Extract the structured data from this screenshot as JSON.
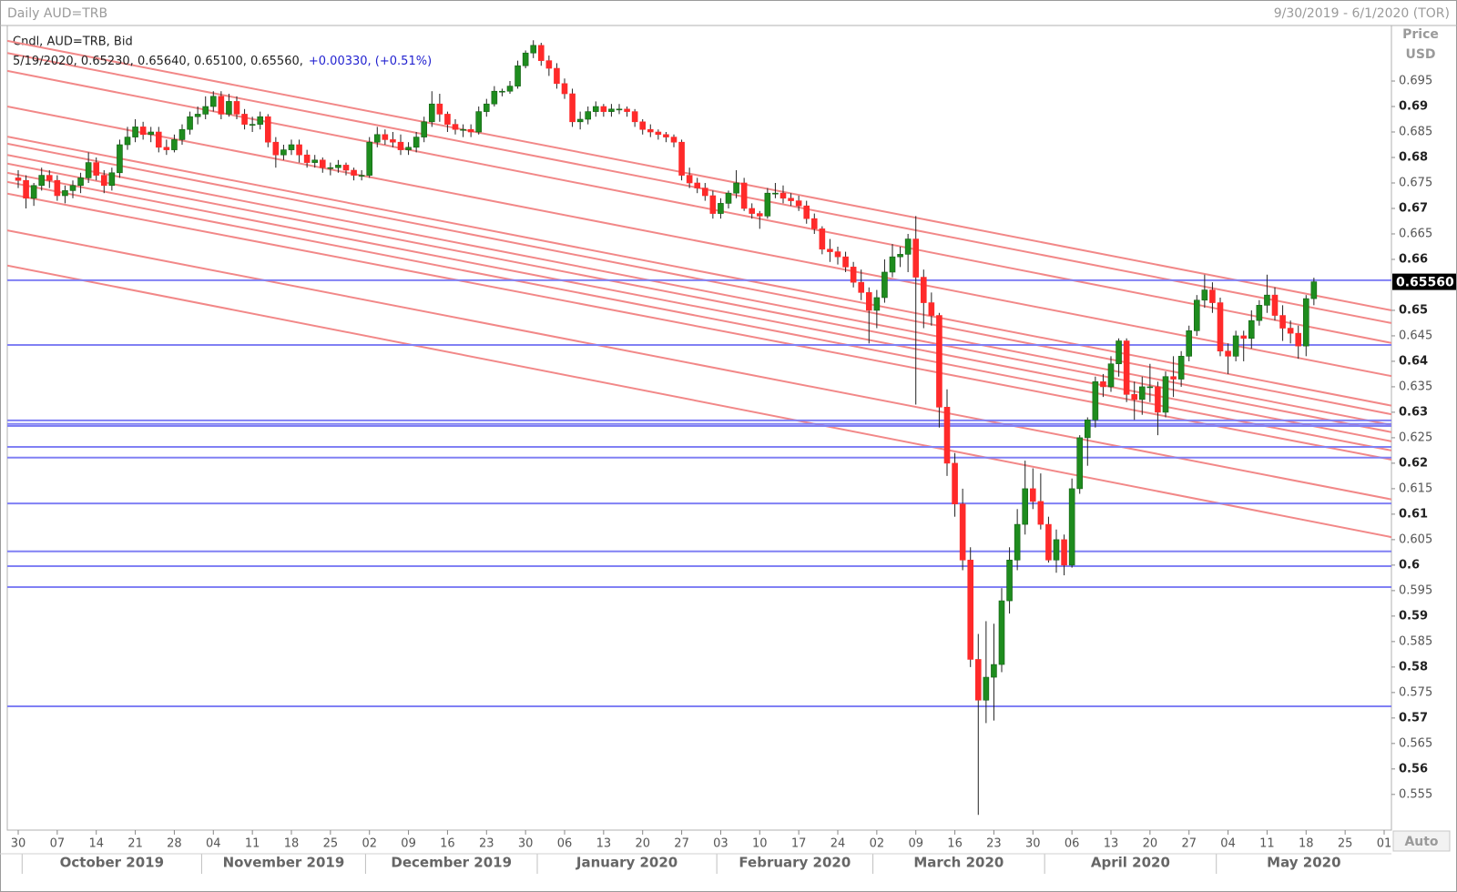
{
  "chart_data": {
    "type": "candlestick",
    "title": "Daily AUD=TRB",
    "date_range": "9/30/2019 - 6/1/2020 (TOR)",
    "legend_title": "Cndl, AUD=TRB, Bid",
    "legend_ohlc_text": "5/19/2020, 0.65230, 0.65640, 0.65100, 0.65560,",
    "legend_change_text": "+0.00330, (+0.51%)",
    "y_axis_title": "Price",
    "y_axis_unit": "USD",
    "scale_mode": "Auto",
    "up_color": "#1e8c1e",
    "down_color": "#ff2a2a",
    "hline_color": "#8080f4",
    "trendline_color": "#f28888",
    "ylim": [
      0.548,
      0.7059
    ],
    "yticks": [
      0.555,
      0.56,
      0.565,
      0.57,
      0.575,
      0.58,
      0.585,
      0.59,
      0.595,
      0.6,
      0.605,
      0.61,
      0.615,
      0.62,
      0.625,
      0.63,
      0.635,
      0.64,
      0.645,
      0.65,
      0.66,
      0.665,
      0.67,
      0.675,
      0.68,
      0.685,
      0.69,
      0.695
    ],
    "last_price": {
      "value": 0.6556,
      "label": "0.65560"
    },
    "xticks": [
      "30",
      "07",
      "14",
      "21",
      "28",
      "04",
      "11",
      "18",
      "25",
      "02",
      "09",
      "16",
      "23",
      "30",
      "06",
      "13",
      "20",
      "27",
      "03",
      "10",
      "17",
      "24",
      "02",
      "09",
      "16",
      "23",
      "30",
      "06",
      "13",
      "20",
      "27",
      "04",
      "11",
      "18",
      "25",
      "01"
    ],
    "month_labels": [
      "October 2019",
      "November 2019",
      "December 2019",
      "January 2020",
      "February 2020",
      "March 2020",
      "April 2020",
      "May 2020"
    ],
    "horizontal_lines": [
      0.6559,
      0.6432,
      0.6284,
      0.6277,
      0.6273,
      0.6232,
      0.6211,
      0.6121,
      0.6027,
      0.5998,
      0.5957,
      0.5723
    ],
    "trendlines": [
      [
        0.7029,
        0.65
      ],
      [
        0.7005,
        0.6475
      ],
      [
        0.697,
        0.6436
      ],
      [
        0.69,
        0.6371
      ],
      [
        0.6841,
        0.6313
      ],
      [
        0.6827,
        0.6296
      ],
      [
        0.6805,
        0.6275
      ],
      [
        0.6788,
        0.6261
      ],
      [
        0.677,
        0.6243
      ],
      [
        0.6752,
        0.6225
      ],
      [
        0.6729,
        0.6207
      ],
      [
        0.6657,
        0.6129
      ],
      [
        0.6588,
        0.6055
      ]
    ],
    "x": [
      "2019-09-30",
      "2019-10-01",
      "2019-10-02",
      "2019-10-03",
      "2019-10-04",
      "2019-10-07",
      "2019-10-08",
      "2019-10-09",
      "2019-10-10",
      "2019-10-11",
      "2019-10-14",
      "2019-10-15",
      "2019-10-16",
      "2019-10-17",
      "2019-10-18",
      "2019-10-21",
      "2019-10-22",
      "2019-10-23",
      "2019-10-24",
      "2019-10-25",
      "2019-10-28",
      "2019-10-29",
      "2019-10-30",
      "2019-10-31",
      "2019-11-01",
      "2019-11-04",
      "2019-11-05",
      "2019-11-06",
      "2019-11-07",
      "2019-11-08",
      "2019-11-11",
      "2019-11-12",
      "2019-11-13",
      "2019-11-14",
      "2019-11-15",
      "2019-11-18",
      "2019-11-19",
      "2019-11-20",
      "2019-11-21",
      "2019-11-22",
      "2019-11-25",
      "2019-11-26",
      "2019-11-27",
      "2019-11-28",
      "2019-11-29",
      "2019-12-02",
      "2019-12-03",
      "2019-12-04",
      "2019-12-05",
      "2019-12-06",
      "2019-12-09",
      "2019-12-10",
      "2019-12-11",
      "2019-12-12",
      "2019-12-13",
      "2019-12-16",
      "2019-12-17",
      "2019-12-18",
      "2019-12-19",
      "2019-12-20",
      "2019-12-23",
      "2019-12-24",
      "2019-12-25",
      "2019-12-26",
      "2019-12-27",
      "2019-12-30",
      "2019-12-31",
      "2020-01-01",
      "2020-01-02",
      "2020-01-03",
      "2020-01-06",
      "2020-01-07",
      "2020-01-08",
      "2020-01-09",
      "2020-01-10",
      "2020-01-13",
      "2020-01-14",
      "2020-01-15",
      "2020-01-16",
      "2020-01-17",
      "2020-01-20",
      "2020-01-21",
      "2020-01-22",
      "2020-01-23",
      "2020-01-24",
      "2020-01-27",
      "2020-01-28",
      "2020-01-29",
      "2020-01-30",
      "2020-01-31",
      "2020-02-03",
      "2020-02-04",
      "2020-02-05",
      "2020-02-06",
      "2020-02-07",
      "2020-02-10",
      "2020-02-11",
      "2020-02-12",
      "2020-02-13",
      "2020-02-14",
      "2020-02-17",
      "2020-02-18",
      "2020-02-19",
      "2020-02-20",
      "2020-02-21",
      "2020-02-24",
      "2020-02-25",
      "2020-02-26",
      "2020-02-27",
      "2020-02-28",
      "2020-03-02",
      "2020-03-03",
      "2020-03-04",
      "2020-03-05",
      "2020-03-06",
      "2020-03-09",
      "2020-03-10",
      "2020-03-11",
      "2020-03-12",
      "2020-03-13",
      "2020-03-16",
      "2020-03-17",
      "2020-03-18",
      "2020-03-19",
      "2020-03-20",
      "2020-03-23",
      "2020-03-24",
      "2020-03-25",
      "2020-03-26",
      "2020-03-27",
      "2020-03-30",
      "2020-03-31",
      "2020-04-01",
      "2020-04-02",
      "2020-04-03",
      "2020-04-06",
      "2020-04-07",
      "2020-04-08",
      "2020-04-09",
      "2020-04-10",
      "2020-04-13",
      "2020-04-14",
      "2020-04-15",
      "2020-04-16",
      "2020-04-17",
      "2020-04-20",
      "2020-04-21",
      "2020-04-22",
      "2020-04-23",
      "2020-04-24",
      "2020-04-27",
      "2020-04-28",
      "2020-04-29",
      "2020-04-30",
      "2020-05-01",
      "2020-05-04",
      "2020-05-05",
      "2020-05-06",
      "2020-05-07",
      "2020-05-08",
      "2020-05-11",
      "2020-05-12",
      "2020-05-13",
      "2020-05-14",
      "2020-05-15",
      "2020-05-18",
      "2020-05-19"
    ],
    "ohlc": [
      [
        0.676,
        0.6775,
        0.674,
        0.6755
      ],
      [
        0.6755,
        0.6765,
        0.67,
        0.672
      ],
      [
        0.672,
        0.675,
        0.6705,
        0.6745
      ],
      [
        0.6745,
        0.678,
        0.6735,
        0.6765
      ],
      [
        0.6765,
        0.6775,
        0.674,
        0.6755
      ],
      [
        0.6755,
        0.6765,
        0.6715,
        0.6725
      ],
      [
        0.6725,
        0.6745,
        0.671,
        0.6735
      ],
      [
        0.6735,
        0.6755,
        0.672,
        0.6745
      ],
      [
        0.6745,
        0.677,
        0.673,
        0.676
      ],
      [
        0.676,
        0.681,
        0.675,
        0.679
      ],
      [
        0.679,
        0.68,
        0.6755,
        0.6765
      ],
      [
        0.6765,
        0.6775,
        0.673,
        0.6745
      ],
      [
        0.6745,
        0.678,
        0.6735,
        0.677
      ],
      [
        0.677,
        0.6835,
        0.676,
        0.6825
      ],
      [
        0.6825,
        0.686,
        0.6815,
        0.684
      ],
      [
        0.684,
        0.6875,
        0.683,
        0.686
      ],
      [
        0.686,
        0.687,
        0.6835,
        0.6845
      ],
      [
        0.6845,
        0.686,
        0.683,
        0.685
      ],
      [
        0.685,
        0.686,
        0.681,
        0.682
      ],
      [
        0.682,
        0.6835,
        0.6805,
        0.6815
      ],
      [
        0.6815,
        0.6845,
        0.681,
        0.6835
      ],
      [
        0.6835,
        0.6865,
        0.6825,
        0.6855
      ],
      [
        0.6855,
        0.689,
        0.6845,
        0.688
      ],
      [
        0.688,
        0.69,
        0.6865,
        0.6885
      ],
      [
        0.6885,
        0.692,
        0.6875,
        0.69
      ],
      [
        0.69,
        0.693,
        0.689,
        0.692
      ],
      [
        0.692,
        0.693,
        0.6875,
        0.6885
      ],
      [
        0.6885,
        0.6925,
        0.688,
        0.691
      ],
      [
        0.691,
        0.692,
        0.6875,
        0.6885
      ],
      [
        0.6885,
        0.6895,
        0.6855,
        0.6865
      ],
      [
        0.6865,
        0.688,
        0.685,
        0.6865
      ],
      [
        0.6865,
        0.689,
        0.6855,
        0.688
      ],
      [
        0.688,
        0.6885,
        0.682,
        0.683
      ],
      [
        0.683,
        0.684,
        0.678,
        0.6805
      ],
      [
        0.6805,
        0.6825,
        0.6795,
        0.6815
      ],
      [
        0.6815,
        0.6835,
        0.6805,
        0.6825
      ],
      [
        0.6825,
        0.6835,
        0.679,
        0.6805
      ],
      [
        0.6805,
        0.6815,
        0.678,
        0.679
      ],
      [
        0.679,
        0.6805,
        0.678,
        0.6795
      ],
      [
        0.6795,
        0.68,
        0.677,
        0.678
      ],
      [
        0.678,
        0.679,
        0.6765,
        0.678
      ],
      [
        0.678,
        0.6795,
        0.677,
        0.6785
      ],
      [
        0.6785,
        0.679,
        0.6765,
        0.6775
      ],
      [
        0.6775,
        0.678,
        0.6755,
        0.6765
      ],
      [
        0.6765,
        0.6775,
        0.6755,
        0.6765
      ],
      [
        0.6765,
        0.684,
        0.676,
        0.683
      ],
      [
        0.683,
        0.686,
        0.682,
        0.6845
      ],
      [
        0.6845,
        0.6855,
        0.6825,
        0.6835
      ],
      [
        0.6835,
        0.685,
        0.682,
        0.683
      ],
      [
        0.683,
        0.6845,
        0.6805,
        0.6815
      ],
      [
        0.6815,
        0.683,
        0.6805,
        0.682
      ],
      [
        0.682,
        0.685,
        0.681,
        0.684
      ],
      [
        0.684,
        0.688,
        0.683,
        0.687
      ],
      [
        0.687,
        0.693,
        0.686,
        0.6905
      ],
      [
        0.6905,
        0.6925,
        0.687,
        0.6885
      ],
      [
        0.6885,
        0.689,
        0.685,
        0.6865
      ],
      [
        0.6865,
        0.6875,
        0.6845,
        0.6855
      ],
      [
        0.6855,
        0.6865,
        0.684,
        0.6855
      ],
      [
        0.6855,
        0.6865,
        0.684,
        0.685
      ],
      [
        0.685,
        0.69,
        0.6845,
        0.689
      ],
      [
        0.689,
        0.6915,
        0.688,
        0.6905
      ],
      [
        0.6905,
        0.694,
        0.69,
        0.693
      ],
      [
        0.693,
        0.6935,
        0.692,
        0.693
      ],
      [
        0.693,
        0.695,
        0.6925,
        0.694
      ],
      [
        0.694,
        0.699,
        0.6935,
        0.698
      ],
      [
        0.698,
        0.701,
        0.6975,
        0.7005
      ],
      [
        0.7005,
        0.703,
        0.6995,
        0.702
      ],
      [
        0.702,
        0.7025,
        0.698,
        0.699
      ],
      [
        0.699,
        0.7,
        0.696,
        0.6975
      ],
      [
        0.6975,
        0.6985,
        0.6935,
        0.6945
      ],
      [
        0.6945,
        0.6955,
        0.6915,
        0.6925
      ],
      [
        0.6925,
        0.6935,
        0.686,
        0.687
      ],
      [
        0.687,
        0.689,
        0.6855,
        0.6875
      ],
      [
        0.6875,
        0.69,
        0.6865,
        0.689
      ],
      [
        0.689,
        0.691,
        0.688,
        0.69
      ],
      [
        0.69,
        0.6905,
        0.688,
        0.689
      ],
      [
        0.689,
        0.6905,
        0.688,
        0.6895
      ],
      [
        0.6895,
        0.6905,
        0.6885,
        0.6895
      ],
      [
        0.6895,
        0.69,
        0.688,
        0.689
      ],
      [
        0.689,
        0.6895,
        0.686,
        0.687
      ],
      [
        0.687,
        0.6875,
        0.6845,
        0.6855
      ],
      [
        0.6855,
        0.6865,
        0.684,
        0.685
      ],
      [
        0.685,
        0.6855,
        0.6835,
        0.6845
      ],
      [
        0.6845,
        0.685,
        0.683,
        0.684
      ],
      [
        0.684,
        0.6845,
        0.682,
        0.683
      ],
      [
        0.683,
        0.6835,
        0.6755,
        0.6765
      ],
      [
        0.6765,
        0.678,
        0.674,
        0.675
      ],
      [
        0.675,
        0.676,
        0.673,
        0.674
      ],
      [
        0.674,
        0.675,
        0.6715,
        0.6725
      ],
      [
        0.6725,
        0.6735,
        0.668,
        0.669
      ],
      [
        0.669,
        0.672,
        0.668,
        0.671
      ],
      [
        0.671,
        0.6735,
        0.67,
        0.673
      ],
      [
        0.673,
        0.6775,
        0.672,
        0.675
      ],
      [
        0.675,
        0.676,
        0.6695,
        0.67
      ],
      [
        0.67,
        0.671,
        0.668,
        0.669
      ],
      [
        0.669,
        0.6695,
        0.666,
        0.6685
      ],
      [
        0.6685,
        0.674,
        0.668,
        0.673
      ],
      [
        0.673,
        0.675,
        0.672,
        0.673
      ],
      [
        0.673,
        0.6745,
        0.671,
        0.672
      ],
      [
        0.672,
        0.673,
        0.6705,
        0.6715
      ],
      [
        0.6715,
        0.6725,
        0.6695,
        0.6705
      ],
      [
        0.6705,
        0.6715,
        0.667,
        0.668
      ],
      [
        0.668,
        0.669,
        0.665,
        0.666
      ],
      [
        0.666,
        0.6665,
        0.661,
        0.662
      ],
      [
        0.662,
        0.664,
        0.6595,
        0.6615
      ],
      [
        0.6615,
        0.6625,
        0.659,
        0.6605
      ],
      [
        0.6605,
        0.6615,
        0.6575,
        0.6585
      ],
      [
        0.6585,
        0.6595,
        0.6545,
        0.6555
      ],
      [
        0.6555,
        0.658,
        0.652,
        0.6535
      ],
      [
        0.6535,
        0.6545,
        0.6435,
        0.65
      ],
      [
        0.65,
        0.654,
        0.6465,
        0.6525
      ],
      [
        0.6525,
        0.66,
        0.6515,
        0.6575
      ],
      [
        0.6575,
        0.663,
        0.6565,
        0.6605
      ],
      [
        0.6605,
        0.6625,
        0.6585,
        0.661
      ],
      [
        0.661,
        0.665,
        0.6575,
        0.664
      ],
      [
        0.664,
        0.6685,
        0.6315,
        0.6565
      ],
      [
        0.6565,
        0.658,
        0.6465,
        0.6515
      ],
      [
        0.6515,
        0.6535,
        0.647,
        0.649
      ],
      [
        0.649,
        0.6495,
        0.627,
        0.631
      ],
      [
        0.631,
        0.6345,
        0.6175,
        0.62
      ],
      [
        0.62,
        0.622,
        0.6095,
        0.612
      ],
      [
        0.612,
        0.615,
        0.599,
        0.601
      ],
      [
        0.601,
        0.6035,
        0.58,
        0.5815
      ],
      [
        0.5815,
        0.5865,
        0.551,
        0.5735
      ],
      [
        0.5735,
        0.589,
        0.569,
        0.578
      ],
      [
        0.578,
        0.5885,
        0.5695,
        0.5805
      ],
      [
        0.5805,
        0.5955,
        0.579,
        0.593
      ],
      [
        0.593,
        0.6035,
        0.5905,
        0.601
      ],
      [
        0.601,
        0.611,
        0.599,
        0.608
      ],
      [
        0.608,
        0.6205,
        0.606,
        0.615
      ],
      [
        0.615,
        0.619,
        0.611,
        0.6125
      ],
      [
        0.6125,
        0.618,
        0.607,
        0.608
      ],
      [
        0.608,
        0.6095,
        0.6005,
        0.601
      ],
      [
        0.601,
        0.607,
        0.5985,
        0.605
      ],
      [
        0.605,
        0.606,
        0.598,
        0.6
      ],
      [
        0.6,
        0.617,
        0.5995,
        0.615
      ],
      [
        0.615,
        0.6255,
        0.614,
        0.625
      ],
      [
        0.625,
        0.629,
        0.6195,
        0.6285
      ],
      [
        0.6285,
        0.637,
        0.627,
        0.636
      ],
      [
        0.636,
        0.6375,
        0.633,
        0.635
      ],
      [
        0.635,
        0.641,
        0.634,
        0.6395
      ],
      [
        0.6395,
        0.6445,
        0.637,
        0.644
      ],
      [
        0.644,
        0.6445,
        0.632,
        0.6335
      ],
      [
        0.6335,
        0.636,
        0.6285,
        0.6325
      ],
      [
        0.6325,
        0.637,
        0.6295,
        0.635
      ],
      [
        0.635,
        0.6395,
        0.632,
        0.635
      ],
      [
        0.635,
        0.636,
        0.6255,
        0.63
      ],
      [
        0.63,
        0.638,
        0.629,
        0.637
      ],
      [
        0.637,
        0.641,
        0.633,
        0.6365
      ],
      [
        0.6365,
        0.642,
        0.635,
        0.641
      ],
      [
        0.641,
        0.647,
        0.64,
        0.646
      ],
      [
        0.646,
        0.653,
        0.645,
        0.652
      ],
      [
        0.652,
        0.657,
        0.6505,
        0.654
      ],
      [
        0.654,
        0.6555,
        0.6495,
        0.6515
      ],
      [
        0.6515,
        0.6525,
        0.641,
        0.642
      ],
      [
        0.642,
        0.6435,
        0.6375,
        0.641
      ],
      [
        0.641,
        0.646,
        0.64,
        0.645
      ],
      [
        0.645,
        0.646,
        0.64,
        0.6445
      ],
      [
        0.6445,
        0.65,
        0.6425,
        0.648
      ],
      [
        0.648,
        0.652,
        0.647,
        0.651
      ],
      [
        0.651,
        0.657,
        0.6495,
        0.653
      ],
      [
        0.653,
        0.6545,
        0.648,
        0.649
      ],
      [
        0.649,
        0.651,
        0.644,
        0.6465
      ],
      [
        0.6465,
        0.648,
        0.6435,
        0.6455
      ],
      [
        0.6455,
        0.647,
        0.6405,
        0.643
      ],
      [
        0.643,
        0.653,
        0.641,
        0.6523
      ],
      [
        0.6523,
        0.6564,
        0.651,
        0.6556
      ]
    ]
  }
}
